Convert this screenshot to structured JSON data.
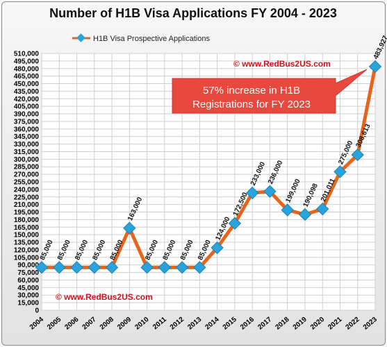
{
  "chart_data": {
    "type": "line",
    "title": "Number of H1B Visa Applications FY 2004 - 2023",
    "legend": {
      "position": "top-left",
      "entries": [
        "H1B Visa Prospective Applications"
      ]
    },
    "categories": [
      "2004",
      "2005",
      "2006",
      "2007",
      "2008",
      "2009",
      "2010",
      "2011",
      "2012",
      "2013",
      "2014",
      "2015",
      "2016",
      "2017",
      "2018",
      "2019",
      "2020",
      "2021",
      "2022",
      "2023"
    ],
    "series": [
      {
        "name": "H1B Visa Prospective Applications",
        "values": [
          85000,
          85000,
          85000,
          85000,
          85000,
          163000,
          85000,
          85000,
          85000,
          85000,
          124000,
          172500,
          233000,
          236000,
          199000,
          190098,
          201011,
          275000,
          308613,
          483927
        ],
        "labels": [
          "85,000",
          "85,000",
          "85,000",
          "85,000",
          "85,000",
          "163,000",
          "85,000",
          "85,000",
          "85,000",
          "85,000",
          "124,000",
          "172,500",
          "233,000",
          "236,000",
          "199,000",
          "190,098",
          "201,011",
          "275,000",
          "308,613",
          "483,927"
        ]
      }
    ],
    "ylim": [
      0,
      510000
    ],
    "ytick_step": 15000,
    "grid": true,
    "colors": {
      "line": "#e8641b",
      "marker": "#29a3dc",
      "callout": "#e8483e",
      "watermark": "#d5101a"
    },
    "annotations": {
      "watermark_top": "© www.RedBus2US.com",
      "watermark_bottom": "© www.RedBus2US.com",
      "callout_line1": "57% increase in H1B",
      "callout_line2": "Registrations for FY 2023"
    }
  }
}
